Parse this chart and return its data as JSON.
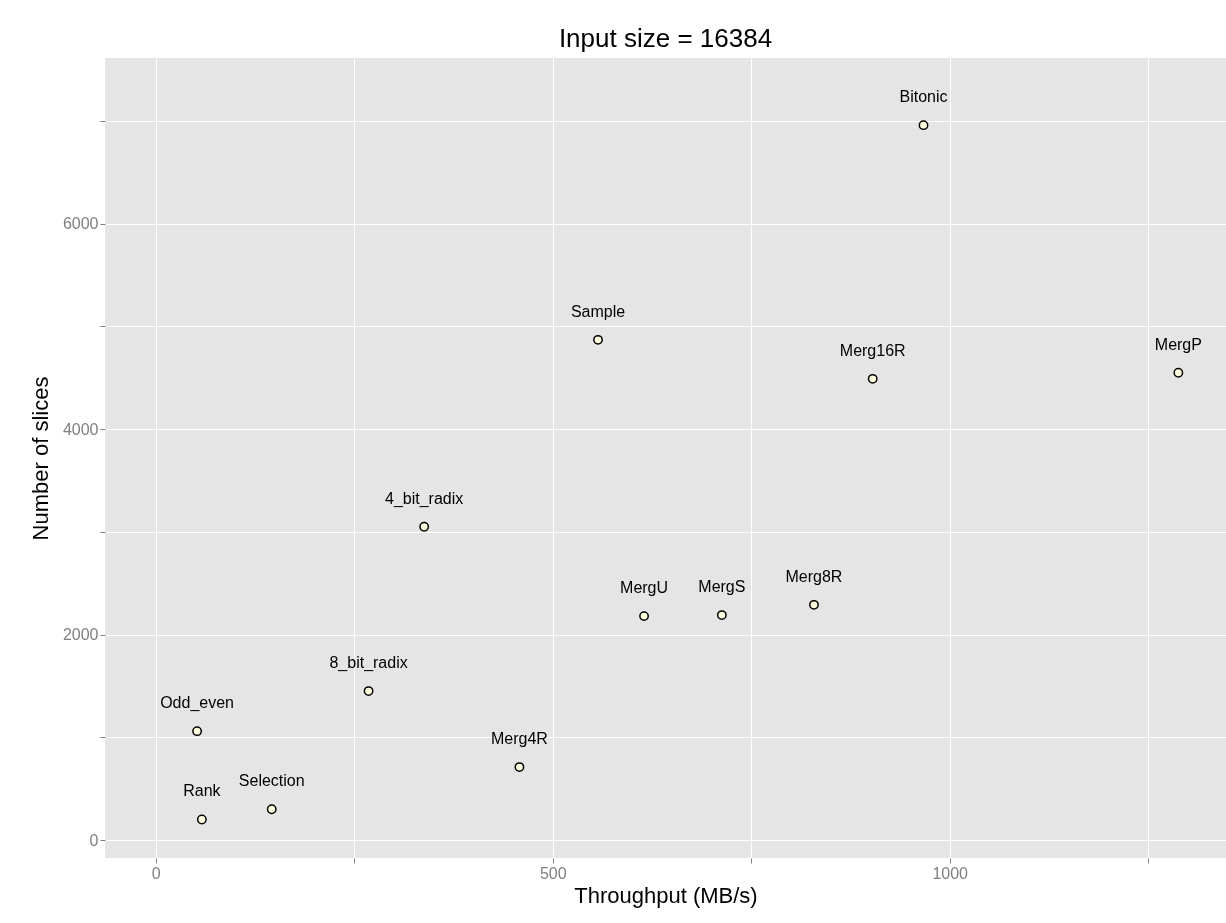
{
  "chart_data": {
    "type": "scatter",
    "title": "Input size = 16384",
    "xlabel": "Throughput (MB/s)",
    "ylabel": "Number of slices",
    "x": [
      58,
      146,
      52,
      268,
      338,
      458,
      615,
      713,
      829,
      903,
      557,
      967,
      1288
    ],
    "series": [
      {
        "color": "#ffffe0",
        "values": [
          200,
          300,
          1060,
          1450,
          3050,
          710,
          2180,
          2190,
          2290,
          4490,
          4870,
          6960,
          4550
        ]
      }
    ],
    "grid": true,
    "xlim": [
      -64,
      1348
    ],
    "ylim": [
      -175,
      7614
    ],
    "xticks": [
      0,
      {
        "value": 250,
        "label": null
      },
      500,
      {
        "value": 750,
        "label": null
      },
      1000,
      {
        "value": 1250,
        "label": null
      }
    ],
    "yticks": [
      0,
      {
        "value": 1000,
        "label": null
      },
      2000,
      {
        "value": 3000,
        "label": null
      },
      4000,
      {
        "value": 5000,
        "label": null
      },
      6000,
      {
        "value": 7000,
        "label": null
      }
    ],
    "annotations": [
      {
        "text": "Rank",
        "x": 58,
        "y": 200
      },
      {
        "text": "Selection",
        "x": 146,
        "y": 300
      },
      {
        "text": "Odd_even",
        "x": 52,
        "y": 1060
      },
      {
        "text": "8_bit_radix",
        "x": 268,
        "y": 1450
      },
      {
        "text": "4_bit_radix",
        "x": 338,
        "y": 3050
      },
      {
        "text": "Merg4R",
        "x": 458,
        "y": 710
      },
      {
        "text": "MergU",
        "x": 615,
        "y": 2180
      },
      {
        "text": "MergS",
        "x": 713,
        "y": 2190
      },
      {
        "text": "Merg8R",
        "x": 829,
        "y": 2290
      },
      {
        "text": "Merg16R",
        "x": 903,
        "y": 4490
      },
      {
        "text": "Sample",
        "x": 557,
        "y": 4870
      },
      {
        "text": "Bitonic",
        "x": 967,
        "y": 6960
      },
      {
        "text": "MergP",
        "x": 1288,
        "y": 4550
      }
    ]
  }
}
